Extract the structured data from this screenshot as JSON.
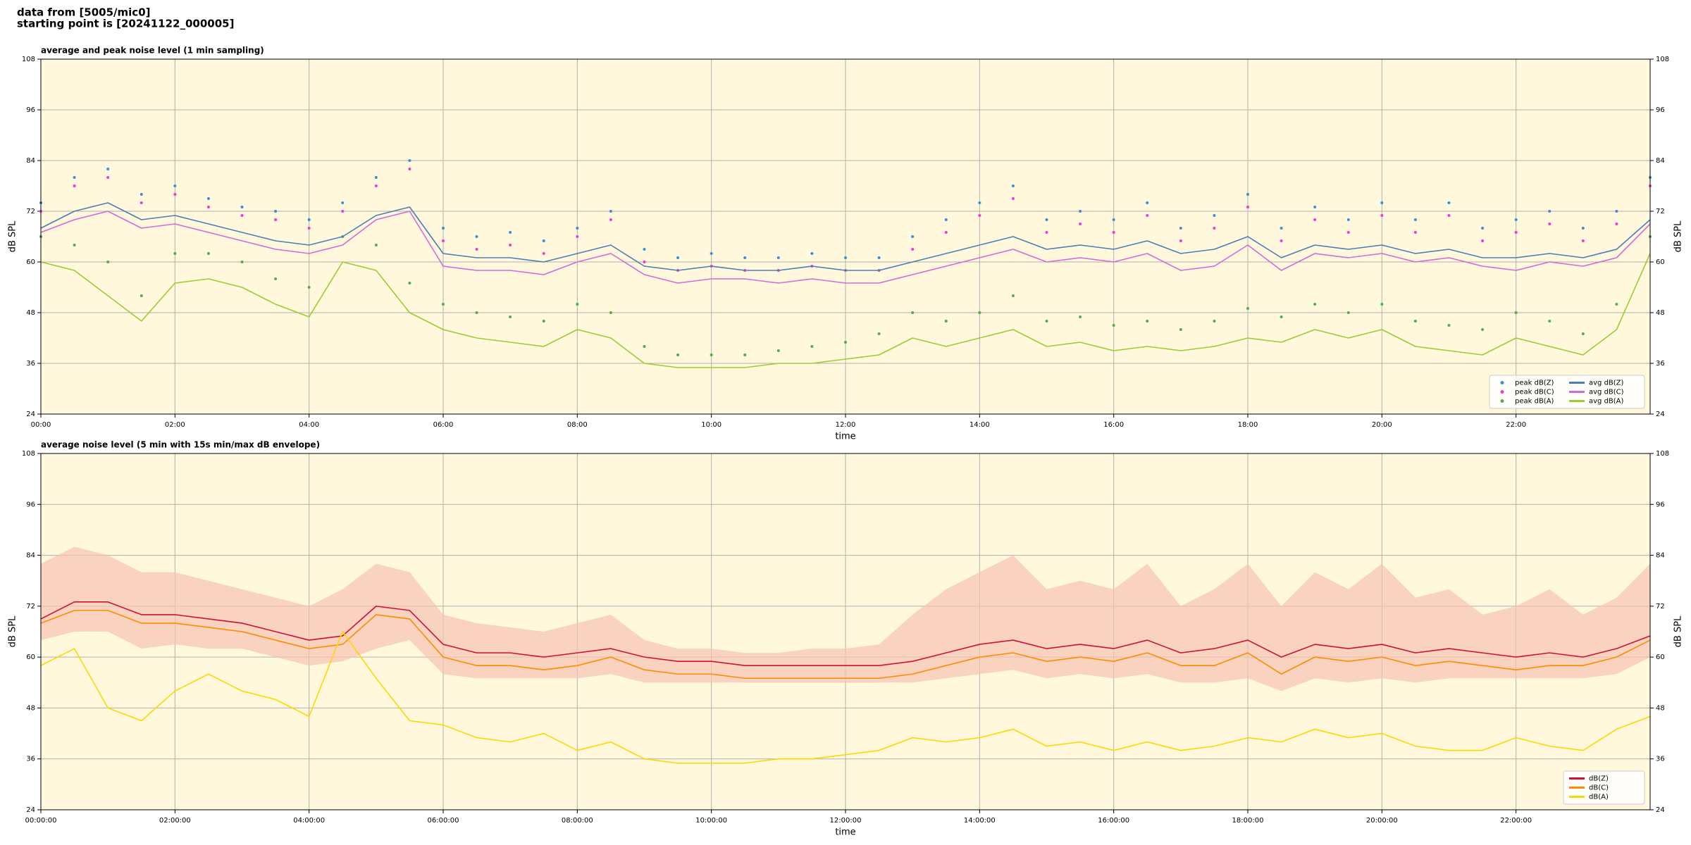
{
  "header": [
    "data from [5005/mic0]",
    "starting point is [20241122_000005]"
  ],
  "chart_data": [
    {
      "type": "line",
      "title": "average and peak noise level (1 min sampling)",
      "xlabel": "time",
      "ylabel": "dB SPL",
      "y2label": "dB SPL",
      "x": [
        0,
        0.5,
        1,
        1.5,
        2,
        2.5,
        3,
        3.5,
        4,
        4.5,
        5,
        5.5,
        6,
        6.5,
        7,
        7.5,
        8,
        8.5,
        9,
        9.5,
        10,
        10.5,
        11,
        11.5,
        12,
        12.5,
        13,
        13.5,
        14,
        14.5,
        15,
        15.5,
        16,
        16.5,
        17,
        17.5,
        18,
        18.5,
        19,
        19.5,
        20,
        20.5,
        21,
        21.5,
        22,
        22.5,
        23,
        23.5,
        24
      ],
      "xlim": [
        0,
        24
      ],
      "xticks": [
        {
          "value": 0,
          "label": "00:00"
        },
        {
          "value": 2,
          "label": "02:00"
        },
        {
          "value": 4,
          "label": "04:00"
        },
        {
          "value": 6,
          "label": "06:00"
        },
        {
          "value": 8,
          "label": "08:00"
        },
        {
          "value": 10,
          "label": "10:00"
        },
        {
          "value": 12,
          "label": "12:00"
        },
        {
          "value": 14,
          "label": "14:00"
        },
        {
          "value": 16,
          "label": "16:00"
        },
        {
          "value": 18,
          "label": "18:00"
        },
        {
          "value": 20,
          "label": "20:00"
        },
        {
          "value": 22,
          "label": "22:00"
        }
      ],
      "ylim": [
        24,
        108
      ],
      "yticks": [
        24,
        36,
        48,
        60,
        72,
        84,
        96,
        108
      ],
      "y2lim": [
        24,
        108
      ],
      "y2ticks": [
        24,
        36,
        48,
        60,
        72,
        84,
        96,
        108
      ],
      "grid": true,
      "legend": "lower right",
      "legend_columns": 2,
      "series": [
        {
          "name": "peak dB(Z)",
          "kind": "scatter",
          "color": "#3b8fd4",
          "values": [
            74,
            80,
            82,
            76,
            78,
            75,
            73,
            72,
            70,
            74,
            80,
            84,
            68,
            66,
            67,
            65,
            68,
            72,
            63,
            61,
            62,
            61,
            61,
            62,
            61,
            61,
            66,
            70,
            74,
            78,
            70,
            72,
            70,
            74,
            68,
            71,
            76,
            68,
            73,
            70,
            74,
            70,
            74,
            68,
            70,
            72,
            68,
            72,
            80
          ]
        },
        {
          "name": "peak dB(C)",
          "kind": "scatter",
          "color": "#f03ad0",
          "values": [
            72,
            78,
            80,
            74,
            76,
            73,
            71,
            70,
            68,
            72,
            78,
            82,
            65,
            63,
            64,
            62,
            66,
            70,
            60,
            58,
            59,
            58,
            58,
            59,
            58,
            58,
            63,
            67,
            71,
            75,
            67,
            69,
            67,
            71,
            65,
            68,
            73,
            65,
            70,
            67,
            71,
            67,
            71,
            65,
            67,
            69,
            65,
            69,
            78
          ]
        },
        {
          "name": "peak dB(A)",
          "kind": "scatter",
          "color": "#4caf50",
          "values": [
            66,
            64,
            60,
            52,
            62,
            62,
            60,
            56,
            54,
            66,
            64,
            55,
            50,
            48,
            47,
            46,
            50,
            48,
            40,
            38,
            38,
            38,
            39,
            40,
            41,
            43,
            48,
            46,
            48,
            52,
            46,
            47,
            45,
            46,
            44,
            46,
            49,
            47,
            50,
            48,
            50,
            46,
            45,
            44,
            48,
            46,
            43,
            50,
            66
          ]
        },
        {
          "name": "avg dB(Z)",
          "kind": "line",
          "color": "#4a7fb5",
          "values": [
            68,
            72,
            74,
            70,
            71,
            69,
            67,
            65,
            64,
            66,
            71,
            73,
            62,
            61,
            61,
            60,
            62,
            64,
            59,
            58,
            59,
            58,
            58,
            59,
            58,
            58,
            60,
            62,
            64,
            66,
            63,
            64,
            63,
            65,
            62,
            63,
            66,
            61,
            64,
            63,
            64,
            62,
            63,
            61,
            61,
            62,
            61,
            63,
            70
          ]
        },
        {
          "name": "avg dB(C)",
          "kind": "line",
          "color": "#d36ad8",
          "values": [
            67,
            70,
            72,
            68,
            69,
            67,
            65,
            63,
            62,
            64,
            70,
            72,
            59,
            58,
            58,
            57,
            60,
            62,
            57,
            55,
            56,
            56,
            55,
            56,
            55,
            55,
            57,
            59,
            61,
            63,
            60,
            61,
            60,
            62,
            58,
            59,
            64,
            58,
            62,
            61,
            62,
            60,
            61,
            59,
            58,
            60,
            59,
            61,
            69
          ]
        },
        {
          "name": "avg dB(A)",
          "kind": "line",
          "color": "#9acd32",
          "values": [
            60,
            58,
            52,
            46,
            55,
            56,
            54,
            50,
            47,
            60,
            58,
            48,
            44,
            42,
            41,
            40,
            44,
            42,
            36,
            35,
            35,
            35,
            36,
            36,
            37,
            38,
            42,
            40,
            42,
            44,
            40,
            41,
            39,
            40,
            39,
            40,
            42,
            41,
            44,
            42,
            44,
            40,
            39,
            38,
            42,
            40,
            38,
            44,
            62
          ]
        }
      ]
    },
    {
      "type": "line",
      "title": "average noise level (5 min with 15s min/max dB envelope)",
      "xlabel": "time",
      "ylabel": "dB SPL",
      "y2label": "dB SPL",
      "x": [
        0,
        0.5,
        1,
        1.5,
        2,
        2.5,
        3,
        3.5,
        4,
        4.5,
        5,
        5.5,
        6,
        6.5,
        7,
        7.5,
        8,
        8.5,
        9,
        9.5,
        10,
        10.5,
        11,
        11.5,
        12,
        12.5,
        13,
        13.5,
        14,
        14.5,
        15,
        15.5,
        16,
        16.5,
        17,
        17.5,
        18,
        18.5,
        19,
        19.5,
        20,
        20.5,
        21,
        21.5,
        22,
        22.5,
        23,
        23.5,
        24
      ],
      "xlim": [
        0,
        24
      ],
      "xticks": [
        {
          "value": 0,
          "label": "00:00:00"
        },
        {
          "value": 2,
          "label": "02:00:00"
        },
        {
          "value": 4,
          "label": "04:00:00"
        },
        {
          "value": 6,
          "label": "06:00:00"
        },
        {
          "value": 8,
          "label": "08:00:00"
        },
        {
          "value": 10,
          "label": "10:00:00"
        },
        {
          "value": 12,
          "label": "12:00:00"
        },
        {
          "value": 14,
          "label": "14:00:00"
        },
        {
          "value": 16,
          "label": "16:00:00"
        },
        {
          "value": 18,
          "label": "18:00:00"
        },
        {
          "value": 20,
          "label": "20:00:00"
        },
        {
          "value": 22,
          "label": "22:00:00"
        }
      ],
      "ylim": [
        24,
        108
      ],
      "yticks": [
        24,
        36,
        48,
        60,
        72,
        84,
        96,
        108
      ],
      "y2lim": [
        24,
        108
      ],
      "y2ticks": [
        24,
        36,
        48,
        60,
        72,
        84,
        96,
        108
      ],
      "grid": true,
      "legend": "lower right",
      "legend_columns": 1,
      "envelope": {
        "color": "#f6c3b2",
        "low": [
          64,
          66,
          66,
          62,
          63,
          62,
          62,
          60,
          58,
          59,
          62,
          64,
          56,
          55,
          55,
          55,
          55,
          56,
          54,
          54,
          54,
          54,
          54,
          54,
          54,
          54,
          54,
          55,
          56,
          57,
          55,
          56,
          55,
          56,
          54,
          54,
          55,
          52,
          55,
          54,
          55,
          54,
          55,
          55,
          55,
          55,
          55,
          56,
          60
        ],
        "high": [
          82,
          86,
          84,
          80,
          80,
          78,
          76,
          74,
          72,
          76,
          82,
          80,
          70,
          68,
          67,
          66,
          68,
          70,
          64,
          62,
          62,
          61,
          61,
          62,
          62,
          63,
          70,
          76,
          80,
          84,
          76,
          78,
          76,
          82,
          72,
          76,
          82,
          72,
          80,
          76,
          82,
          74,
          76,
          70,
          72,
          76,
          70,
          74,
          82
        ]
      },
      "series": [
        {
          "name": "dB(Z)",
          "kind": "line",
          "color": "#d0103a",
          "values": [
            69,
            73,
            73,
            70,
            70,
            69,
            68,
            66,
            64,
            65,
            72,
            71,
            63,
            61,
            61,
            60,
            61,
            62,
            60,
            59,
            59,
            58,
            58,
            58,
            58,
            58,
            59,
            61,
            63,
            64,
            62,
            63,
            62,
            64,
            61,
            62,
            64,
            60,
            63,
            62,
            63,
            61,
            62,
            61,
            60,
            61,
            60,
            62,
            65
          ]
        },
        {
          "name": "dB(C)",
          "kind": "line",
          "color": "#ff8c00",
          "values": [
            68,
            71,
            71,
            68,
            68,
            67,
            66,
            64,
            62,
            63,
            70,
            69,
            60,
            58,
            58,
            57,
            58,
            60,
            57,
            56,
            56,
            55,
            55,
            55,
            55,
            55,
            56,
            58,
            60,
            61,
            59,
            60,
            59,
            61,
            58,
            58,
            61,
            56,
            60,
            59,
            60,
            58,
            59,
            58,
            57,
            58,
            58,
            60,
            64
          ]
        },
        {
          "name": "dB(A)",
          "kind": "line",
          "color": "#ffd700",
          "values": [
            58,
            62,
            48,
            45,
            52,
            56,
            52,
            50,
            46,
            66,
            55,
            45,
            44,
            41,
            40,
            42,
            38,
            40,
            36,
            35,
            35,
            35,
            36,
            36,
            37,
            38,
            41,
            40,
            41,
            43,
            39,
            40,
            38,
            40,
            38,
            39,
            41,
            40,
            43,
            41,
            42,
            39,
            38,
            38,
            41,
            39,
            38,
            43,
            46
          ]
        }
      ]
    }
  ]
}
